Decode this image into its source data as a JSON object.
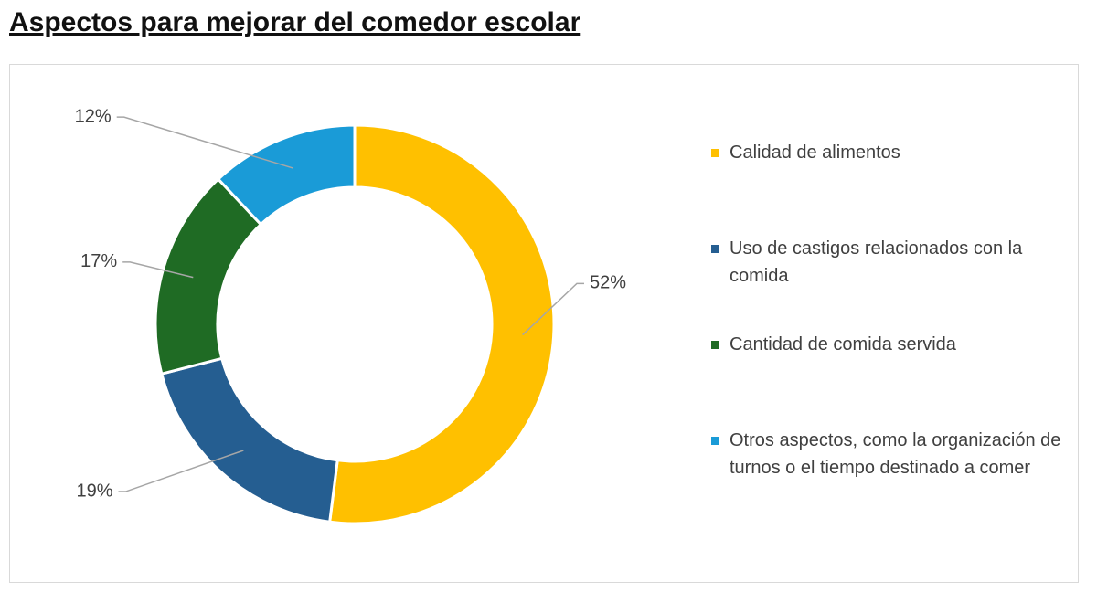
{
  "chart_data": {
    "type": "donut",
    "title": "Aspectos para mejorar del comedor escolar",
    "categories": [
      "Calidad de alimentos",
      "Uso de castigos relacionados con la comida",
      "Cantidad de comida servida",
      "Otros aspectos, como la organización de turnos o el tiempo destinado a comer"
    ],
    "values": [
      52,
      19,
      17,
      12
    ],
    "value_labels": [
      "52%",
      "19%",
      "17%",
      "12%"
    ],
    "colors": [
      "#FFC000",
      "#255E91",
      "#1F6B24",
      "#1A9BD7"
    ],
    "legend": "right"
  }
}
